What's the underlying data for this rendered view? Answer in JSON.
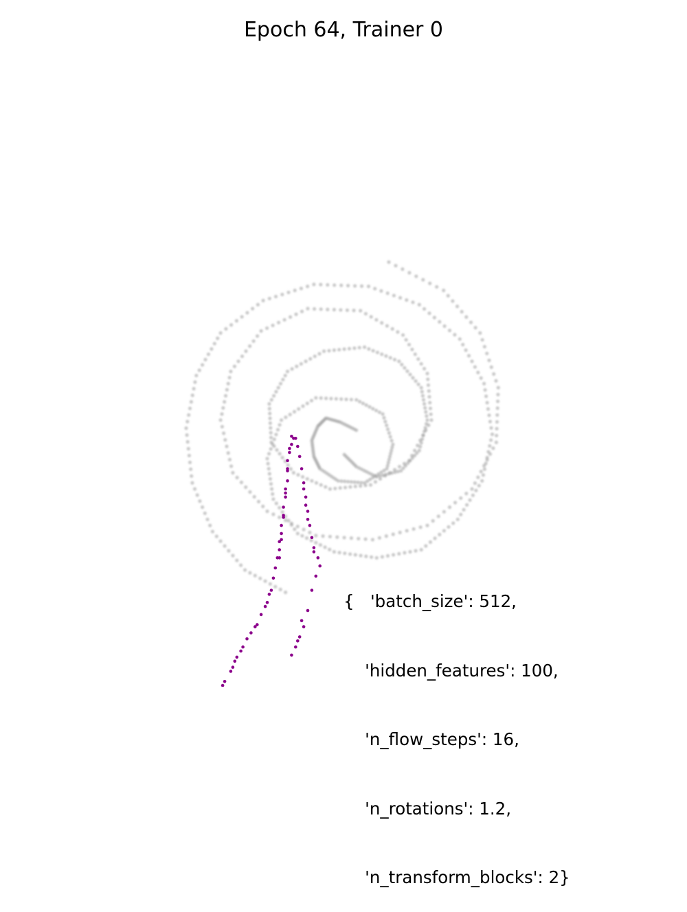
{
  "chart_data": {
    "type": "scatter",
    "title": "Epoch 64, Trainer 0",
    "xlabel": "",
    "ylabel": "",
    "axes_visible": false,
    "grid": false,
    "legend": "none",
    "series": [
      {
        "role": "target density",
        "style": "grey blurred points",
        "color": "#9a9a9a",
        "shape": "two-arm spiral",
        "points": [
          [
            0.58,
            0.57
          ],
          [
            0.64,
            0.51
          ],
          [
            0.74,
            0.46
          ],
          [
            0.86,
            0.49
          ],
          [
            0.95,
            0.59
          ],
          [
            0.99,
            0.74
          ],
          [
            0.96,
            0.9
          ],
          [
            0.85,
            1.03
          ],
          [
            0.68,
            1.1
          ],
          [
            0.48,
            1.08
          ],
          [
            0.3,
            0.98
          ],
          [
            0.21,
            0.82
          ],
          [
            0.22,
            0.63
          ],
          [
            0.33,
            0.48
          ],
          [
            0.51,
            0.4
          ],
          [
            0.71,
            0.42
          ],
          [
            0.9,
            0.54
          ],
          [
            1.01,
            0.74
          ],
          [
            0.99,
            0.97
          ],
          [
            0.87,
            1.16
          ],
          [
            0.66,
            1.28
          ],
          [
            0.4,
            1.29
          ],
          [
            0.17,
            1.18
          ],
          [
            0.02,
            0.98
          ],
          [
            -0.03,
            0.74
          ],
          [
            0.03,
            0.48
          ],
          [
            0.2,
            0.29
          ],
          [
            0.44,
            0.17
          ],
          [
            0.72,
            0.15
          ],
          [
            0.99,
            0.22
          ],
          [
            1.21,
            0.4
          ],
          [
            1.33,
            0.63
          ],
          [
            1.34,
            0.9
          ],
          [
            1.25,
            1.17
          ],
          [
            1.07,
            1.38
          ],
          [
            0.8,
            1.52
          ],
          [
            0.64,
            0.69
          ],
          [
            0.56,
            0.73
          ],
          [
            0.49,
            0.75
          ],
          [
            0.45,
            0.71
          ],
          [
            0.42,
            0.64
          ],
          [
            0.43,
            0.56
          ],
          [
            0.46,
            0.5
          ],
          [
            0.55,
            0.44
          ],
          [
            0.68,
            0.43
          ],
          [
            0.79,
            0.5
          ],
          [
            0.82,
            0.62
          ],
          [
            0.77,
            0.77
          ],
          [
            0.64,
            0.84
          ],
          [
            0.44,
            0.85
          ],
          [
            0.27,
            0.74
          ],
          [
            0.2,
            0.55
          ],
          [
            0.23,
            0.35
          ],
          [
            0.35,
            0.18
          ],
          [
            0.53,
            0.09
          ],
          [
            0.74,
            0.06
          ],
          [
            0.96,
            0.1
          ],
          [
            1.14,
            0.25
          ],
          [
            1.26,
            0.44
          ],
          [
            1.31,
            0.67
          ],
          [
            1.27,
            0.92
          ],
          [
            1.15,
            1.14
          ],
          [
            0.95,
            1.31
          ],
          [
            0.7,
            1.4
          ],
          [
            0.43,
            1.41
          ],
          [
            0.18,
            1.33
          ],
          [
            -0.03,
            1.17
          ],
          [
            -0.15,
            0.96
          ],
          [
            -0.2,
            0.7
          ],
          [
            -0.17,
            0.43
          ],
          [
            -0.07,
            0.19
          ],
          [
            0.09,
            0.0
          ],
          [
            0.29,
            -0.11
          ]
        ]
      },
      {
        "role": "model samples",
        "style": "solid dots",
        "color": "#8b008b",
        "points": [
          [
            0.33,
            0.65
          ],
          [
            0.32,
            0.62
          ],
          [
            0.31,
            0.58
          ],
          [
            0.3,
            0.54
          ],
          [
            0.3,
            0.49
          ],
          [
            0.3,
            0.44
          ],
          [
            0.29,
            0.4
          ],
          [
            0.29,
            0.36
          ],
          [
            0.28,
            0.31
          ],
          [
            0.28,
            0.27
          ],
          [
            0.27,
            0.22
          ],
          [
            0.27,
            0.18
          ],
          [
            0.26,
            0.14
          ],
          [
            0.26,
            0.1
          ],
          [
            0.25,
            0.06
          ],
          [
            0.24,
            0.01
          ],
          [
            0.23,
            -0.04
          ],
          [
            0.22,
            -0.1
          ],
          [
            0.2,
            -0.16
          ],
          [
            0.17,
            -0.22
          ],
          [
            0.14,
            -0.28
          ],
          [
            0.1,
            -0.34
          ],
          [
            0.07,
            -0.4
          ],
          [
            0.04,
            -0.45
          ],
          [
            0.02,
            -0.5
          ],
          [
            -0.01,
            -0.55
          ],
          [
            -0.04,
            -0.6
          ],
          [
            -0.07,
            -0.64
          ],
          [
            -0.12,
            -0.68
          ],
          [
            -0.17,
            -0.7
          ],
          [
            0.34,
            0.65
          ],
          [
            0.35,
            0.61
          ],
          [
            0.36,
            0.56
          ],
          [
            0.37,
            0.5
          ],
          [
            0.38,
            0.43
          ],
          [
            0.39,
            0.36
          ],
          [
            0.4,
            0.29
          ],
          [
            0.41,
            0.22
          ],
          [
            0.42,
            0.16
          ],
          [
            0.43,
            0.11
          ],
          [
            0.45,
            0.06
          ],
          [
            0.46,
            0.02
          ],
          [
            0.44,
            -0.03
          ],
          [
            0.42,
            -0.1
          ],
          [
            0.4,
            -0.2
          ],
          [
            0.38,
            -0.28
          ],
          [
            0.36,
            -0.33
          ],
          [
            0.34,
            -0.38
          ],
          [
            0.32,
            -0.42
          ],
          [
            0.32,
            0.66
          ],
          [
            0.31,
            0.6
          ],
          [
            0.3,
            0.5
          ],
          [
            0.29,
            0.38
          ],
          [
            0.28,
            0.26
          ],
          [
            0.27,
            0.15
          ],
          [
            0.26,
            0.06
          ],
          [
            0.38,
            0.4
          ],
          [
            0.39,
            0.32
          ],
          [
            0.4,
            0.25
          ],
          [
            0.43,
            0.09
          ],
          [
            0.21,
            -0.12
          ],
          [
            0.19,
            -0.18
          ],
          [
            0.15,
            -0.27
          ],
          [
            0.12,
            -0.31
          ],
          [
            0.08,
            -0.38
          ],
          [
            0.05,
            -0.43
          ],
          [
            0.03,
            -0.48
          ],
          [
            -0.02,
            -0.57
          ],
          [
            -0.05,
            -0.62
          ],
          [
            0.37,
            -0.25
          ],
          [
            0.35,
            -0.35
          ]
        ]
      }
    ],
    "annotation_lines": [
      "{   'batch_size': 512,",
      "    'hidden_features': 100,",
      "    'n_flow_steps': 16,",
      "    'n_rotations': 1.2,",
      "    'n_transform_blocks': 2}"
    ]
  }
}
